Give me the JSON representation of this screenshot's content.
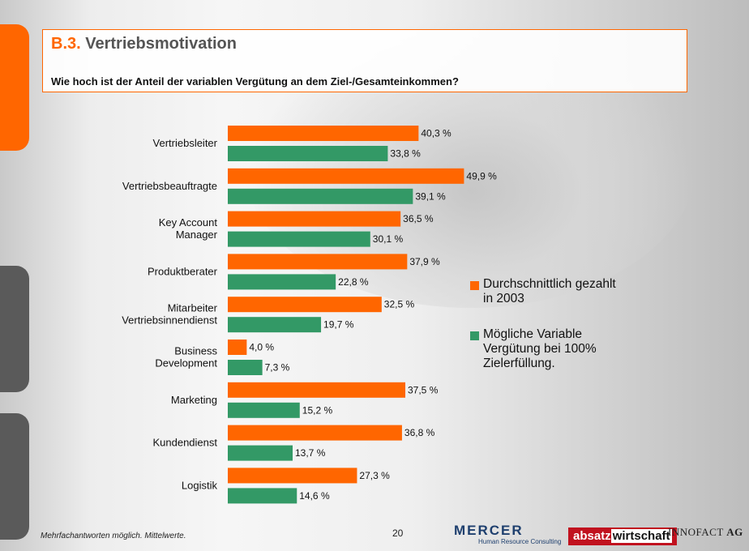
{
  "header": {
    "number": "B.3.",
    "title": "Vertriebsmotivation",
    "question": "Wie hoch ist der Anteil der variablen Vergütung an dem Ziel-/Gesamteinkommen?"
  },
  "chart_data": {
    "type": "bar",
    "orientation": "horizontal",
    "categories": [
      [
        "Vertriebsleiter"
      ],
      [
        "Vertriebsbeauftragte"
      ],
      [
        "Key Account",
        "Manager"
      ],
      [
        "Produktberater"
      ],
      [
        "Mitarbeiter",
        "Vertriebsinnendienst"
      ],
      [
        "Business",
        "Development"
      ],
      [
        "Marketing"
      ],
      [
        "Kundendienst"
      ],
      [
        "Logistik"
      ]
    ],
    "series": [
      {
        "name": "Durchschnittlich gezahlt in 2003",
        "color": "#ff6600",
        "values": [
          40.3,
          49.9,
          36.5,
          37.9,
          32.5,
          4.0,
          37.5,
          36.8,
          27.3
        ],
        "labels": [
          "40,3 %",
          "49,9 %",
          "36,5 %",
          "37,9 %",
          "32,5 %",
          "4,0 %",
          "37,5 %",
          "36,8 %",
          "27,3 %"
        ]
      },
      {
        "name": "Mögliche Variable Vergütung bei 100% Zielerfüllung.",
        "color": "#339966",
        "values": [
          33.8,
          39.1,
          30.1,
          22.8,
          19.7,
          7.3,
          15.2,
          13.7,
          14.6
        ],
        "labels": [
          "33,8 %",
          "39,1 %",
          "30,1 %",
          "22,8 %",
          "19,7 %",
          "7,3 %",
          "15,2 %",
          "13,7 %",
          "14,6 %"
        ]
      }
    ],
    "legend": {
      "position": "right",
      "items": [
        [
          "Durchschnittlich gezahlt",
          "in 2003"
        ],
        [
          "Mögliche Variable",
          "Vergütung bei 100%",
          "Zielerfüllung."
        ]
      ]
    }
  },
  "footer": {
    "note": "Mehrfachantworten möglich. Mittelwerte.",
    "page": "20",
    "logos": {
      "mercer": "MERCER",
      "mercer_sub": "Human Resource Consulting",
      "absatz": "absatz",
      "wirtschaft": "wirtschaft",
      "innofact": "INNOFACT",
      "ag": "AG"
    }
  }
}
